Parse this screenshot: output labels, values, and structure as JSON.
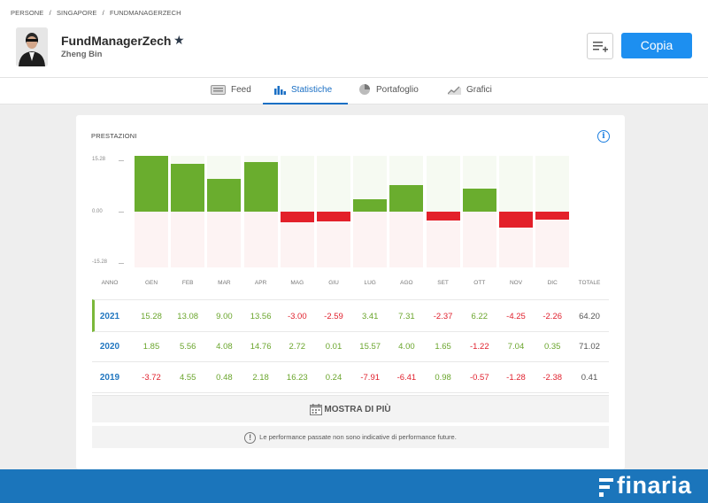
{
  "breadcrumb": [
    "PERSONE",
    "/",
    "SINGAPORE",
    "/",
    "FUNDMANAGERZECH"
  ],
  "profile": {
    "username": "FundManagerZech",
    "full_name": "Zheng Bin",
    "copy_label": "Copia"
  },
  "tabs": [
    {
      "label": "Feed",
      "icon": "feed-icon",
      "active": false
    },
    {
      "label": "Statistiche",
      "icon": "bar-chart-icon",
      "active": true
    },
    {
      "label": "Portafoglio",
      "icon": "pie-chart-icon",
      "active": false
    },
    {
      "label": "Grafici",
      "icon": "line-chart-icon",
      "active": false
    }
  ],
  "performance": {
    "title": "PRESTAZIONI",
    "column_header_year": "ANNO",
    "column_header_total": "TOTALE",
    "months": [
      "GEN",
      "FEB",
      "MAR",
      "APR",
      "MAG",
      "GIU",
      "LUG",
      "AGO",
      "SET",
      "OTT",
      "NOV",
      "DIC"
    ],
    "rows": [
      {
        "year": "2021",
        "values": [
          "15.28",
          "13.08",
          "9.00",
          "13.56",
          "-3.00",
          "-2.59",
          "3.41",
          "7.31",
          "-2.37",
          "6.22",
          "-4.25",
          "-2.26"
        ],
        "total": "64.20"
      },
      {
        "year": "2020",
        "values": [
          "1.85",
          "5.56",
          "4.08",
          "14.76",
          "2.72",
          "0.01",
          "15.57",
          "4.00",
          "1.65",
          "-1.22",
          "7.04",
          "0.35"
        ],
        "total": "71.02"
      },
      {
        "year": "2019",
        "values": [
          "-3.72",
          "4.55",
          "0.48",
          "2.18",
          "16.23",
          "0.24",
          "-7.91",
          "-6.41",
          "0.98",
          "-0.57",
          "-1.28",
          "-2.38"
        ],
        "total": "0.41"
      }
    ],
    "more_label": "MOSTRA DI PIÙ",
    "disclaimer": "Le performance passate non sono indicative di performance future."
  },
  "chart_data": {
    "type": "bar",
    "categories": [
      "GEN",
      "FEB",
      "MAR",
      "APR",
      "MAG",
      "GIU",
      "LUG",
      "AGO",
      "SET",
      "OTT",
      "NOV",
      "DIC"
    ],
    "values": [
      15.28,
      13.08,
      9.0,
      13.56,
      -3.0,
      -2.59,
      3.41,
      7.31,
      -2.37,
      6.22,
      -4.25,
      -2.26
    ],
    "yticks": [
      "15.28",
      "0.00",
      "-15.28"
    ],
    "ylim": [
      -15.28,
      15.28
    ],
    "colors": {
      "positive": "#6aad2e",
      "negative": "#e3202a"
    }
  },
  "footer": {
    "brand": "finaria"
  }
}
